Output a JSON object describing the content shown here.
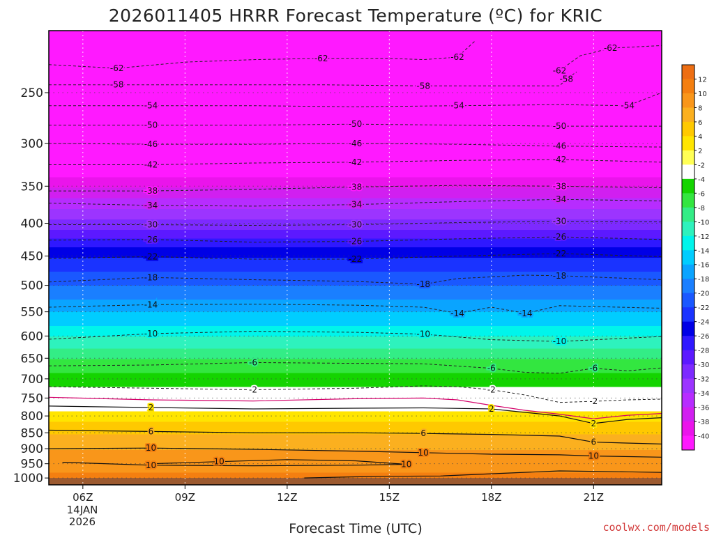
{
  "chart_data": {
    "type": "heatmap",
    "title": "2026011405 HRRR Forecast Temperature (ºC) for KRIC",
    "xlabel": "Forecast Time (UTC)",
    "ylabel": "",
    "x_ticks": [
      "06Z",
      "09Z",
      "12Z",
      "15Z",
      "18Z",
      "21Z"
    ],
    "x_hours": [
      6,
      9,
      12,
      15,
      18,
      21
    ],
    "x_range": [
      5,
      23
    ],
    "x_date_line1": "14JAN",
    "x_date_line2": "2026",
    "y_ticks": [
      250,
      300,
      350,
      400,
      450,
      500,
      550,
      600,
      650,
      700,
      750,
      800,
      850,
      900,
      950,
      1000
    ],
    "ylim": [
      1025,
      200
    ],
    "colorbar": {
      "labels": [
        12,
        10,
        8,
        6,
        4,
        2,
        -2,
        -4,
        -6,
        -8,
        -10,
        -12,
        -14,
        -16,
        -18,
        -20,
        -22,
        -24,
        -26,
        -28,
        -30,
        -32,
        -34,
        -36,
        -38,
        -40
      ],
      "colors": [
        "#ed6e13",
        "#f47f10",
        "#f9961a",
        "#fbb01f",
        "#ffc900",
        "#ffe500",
        "#ffff55",
        "#ffffff",
        "#14d400",
        "#33e640",
        "#33ed86",
        "#2ef2bd",
        "#00f5eb",
        "#00cdff",
        "#0aa4ff",
        "#1a7fff",
        "#1a58ff",
        "#1a33ff",
        "#0000e6",
        "#2f18ff",
        "#5c19ff",
        "#7d2aff",
        "#9c34ff",
        "#b72cff",
        "#d11ff0",
        "#ea14eb",
        "#ff19ff"
      ]
    },
    "temperature_profile": [
      {
        "p": 1000,
        "t": 11
      },
      {
        "p": 975,
        "t": 10
      },
      {
        "p": 950,
        "t": 9
      },
      {
        "p": 900,
        "t": 8
      },
      {
        "p": 850,
        "t": 6
      },
      {
        "p": 800,
        "t": 3
      },
      {
        "p": 750,
        "t": 0
      },
      {
        "p": 700,
        "t": -3
      },
      {
        "p": 650,
        "t": -6
      },
      {
        "p": 600,
        "t": -10
      },
      {
        "p": 550,
        "t": -14
      },
      {
        "p": 500,
        "t": -18
      },
      {
        "p": 450,
        "t": -22
      },
      {
        "p": 400,
        "t": -29
      },
      {
        "p": 350,
        "t": -36
      },
      {
        "p": 300,
        "t": -45
      },
      {
        "p": 250,
        "t": -56
      },
      {
        "p": 200,
        "t": -63
      }
    ],
    "contours": [
      {
        "label": "-62",
        "color": "#222",
        "dash": true,
        "points": [
          [
            5,
            226
          ],
          [
            7,
            229
          ],
          [
            9,
            224
          ],
          [
            11,
            222
          ],
          [
            13,
            221
          ],
          [
            15,
            221
          ],
          [
            16,
            222
          ],
          [
            17,
            220
          ],
          [
            17.5,
            208
          ]
        ]
      },
      {
        "label": "-62",
        "color": "#222",
        "dash": true,
        "points": [
          [
            20,
            231
          ],
          [
            20.6,
            219
          ],
          [
            21.5,
            213
          ],
          [
            23,
            211
          ]
        ]
      },
      {
        "label": "-58",
        "color": "#222",
        "dash": true,
        "points": [
          [
            5,
            243
          ],
          [
            7,
            243
          ],
          [
            10,
            243
          ],
          [
            13,
            243
          ],
          [
            16,
            244
          ],
          [
            19,
            244
          ],
          [
            20,
            244
          ],
          [
            20.2,
            238
          ],
          [
            20.5,
            232
          ]
        ]
      },
      {
        "label": "-54",
        "color": "#222",
        "dash": true,
        "points": [
          [
            5,
            262
          ],
          [
            8,
            262
          ],
          [
            11,
            262
          ],
          [
            14,
            263
          ],
          [
            17,
            262
          ],
          [
            20,
            261
          ],
          [
            22,
            262
          ],
          [
            23,
            250
          ]
        ]
      },
      {
        "label": "-50",
        "color": "#222",
        "dash": true,
        "points": [
          [
            5,
            281
          ],
          [
            8,
            281
          ],
          [
            11,
            281
          ],
          [
            14,
            280
          ],
          [
            17,
            281
          ],
          [
            20,
            282
          ],
          [
            23,
            282
          ]
        ]
      },
      {
        "label": "-46",
        "color": "#222",
        "dash": true,
        "points": [
          [
            5,
            300
          ],
          [
            8,
            301
          ],
          [
            11,
            301
          ],
          [
            14,
            300
          ],
          [
            17,
            301
          ],
          [
            20,
            303
          ],
          [
            23,
            304
          ]
        ]
      },
      {
        "label": "-42",
        "color": "#222",
        "dash": true,
        "points": [
          [
            5,
            324
          ],
          [
            8,
            324
          ],
          [
            11,
            322
          ],
          [
            14,
            321
          ],
          [
            17,
            319
          ],
          [
            20,
            318
          ],
          [
            23,
            321
          ]
        ]
      },
      {
        "label": "-38",
        "color": "#222",
        "dash": true,
        "points": [
          [
            5,
            356
          ],
          [
            8,
            356
          ],
          [
            11,
            354
          ],
          [
            14,
            351
          ],
          [
            17,
            349
          ],
          [
            20,
            350
          ],
          [
            23,
            352
          ]
        ]
      },
      {
        "label": "-34",
        "color": "#222",
        "dash": true,
        "points": [
          [
            5,
            372
          ],
          [
            8,
            375
          ],
          [
            11,
            376
          ],
          [
            14,
            374
          ],
          [
            17,
            370
          ],
          [
            20,
            367
          ],
          [
            23,
            369
          ]
        ]
      },
      {
        "label": "-30",
        "color": "#222",
        "dash": true,
        "points": [
          [
            5,
            402
          ],
          [
            8,
            402
          ],
          [
            11,
            403
          ],
          [
            14,
            402
          ],
          [
            17,
            399
          ],
          [
            20,
            397
          ],
          [
            23,
            398
          ]
        ]
      },
      {
        "label": "-26",
        "color": "#222",
        "dash": true,
        "points": [
          [
            5,
            425
          ],
          [
            8,
            424
          ],
          [
            11,
            428
          ],
          [
            14,
            427
          ],
          [
            17,
            423
          ],
          [
            20,
            420
          ],
          [
            23,
            424
          ]
        ]
      },
      {
        "label": "-22",
        "color": "#222",
        "dash": true,
        "points": [
          [
            5,
            454
          ],
          [
            8,
            451
          ],
          [
            11,
            455
          ],
          [
            14,
            455
          ],
          [
            17,
            450
          ],
          [
            20,
            446
          ],
          [
            23,
            451
          ]
        ]
      },
      {
        "label": "-18",
        "color": "#222",
        "dash": true,
        "points": [
          [
            5,
            494
          ],
          [
            8,
            486
          ],
          [
            11,
            490
          ],
          [
            14,
            493
          ],
          [
            16,
            498
          ],
          [
            17,
            488
          ],
          [
            19,
            482
          ],
          [
            20,
            483
          ],
          [
            23,
            490
          ]
        ]
      },
      {
        "label": "-14",
        "color": "#222",
        "dash": true,
        "points": [
          [
            5,
            541
          ],
          [
            8,
            536
          ],
          [
            11,
            535
          ],
          [
            14,
            537
          ],
          [
            16,
            541
          ],
          [
            17,
            553
          ],
          [
            18,
            541
          ],
          [
            19,
            553
          ],
          [
            20,
            538
          ],
          [
            23,
            543
          ]
        ]
      },
      {
        "label": "-10",
        "color": "#222",
        "dash": true,
        "points": [
          [
            5,
            607
          ],
          [
            8,
            595
          ],
          [
            11,
            590
          ],
          [
            14,
            592
          ],
          [
            16,
            596
          ],
          [
            18,
            608
          ],
          [
            20,
            612
          ],
          [
            23,
            601
          ]
        ]
      },
      {
        "label": "-6",
        "color": "#222",
        "dash": true,
        "points": [
          [
            5,
            668
          ],
          [
            8,
            666
          ],
          [
            11,
            660
          ],
          [
            14,
            662
          ],
          [
            16,
            663
          ],
          [
            18,
            674
          ],
          [
            19,
            684
          ],
          [
            20,
            686
          ],
          [
            21,
            674
          ],
          [
            22,
            680
          ],
          [
            23,
            673
          ]
        ]
      },
      {
        "label": "-2",
        "color": "#222",
        "dash": true,
        "points": [
          [
            5,
            720
          ],
          [
            8,
            724
          ],
          [
            11,
            728
          ],
          [
            14,
            724
          ],
          [
            16,
            718
          ],
          [
            17,
            720
          ],
          [
            18,
            728
          ],
          [
            19,
            742
          ],
          [
            20,
            762
          ],
          [
            21,
            759
          ],
          [
            22,
            755
          ],
          [
            23,
            753
          ]
        ]
      },
      {
        "label": "",
        "color": "#d4006a",
        "dash": false,
        "points": [
          [
            5,
            748
          ],
          [
            8,
            755
          ],
          [
            11,
            758
          ],
          [
            14,
            752
          ],
          [
            16,
            750
          ],
          [
            17,
            755
          ],
          [
            18,
            770
          ],
          [
            19,
            784
          ],
          [
            20,
            795
          ],
          [
            21,
            808
          ],
          [
            22,
            798
          ],
          [
            23,
            793
          ]
        ]
      },
      {
        "label": "2",
        "color": "#111",
        "dash": false,
        "points": [
          [
            5,
            772
          ],
          [
            8,
            776
          ],
          [
            11,
            780
          ],
          [
            14,
            778
          ],
          [
            16,
            777
          ],
          [
            18,
            780
          ],
          [
            20,
            800
          ],
          [
            21,
            822
          ],
          [
            22,
            810
          ],
          [
            23,
            805
          ]
        ]
      },
      {
        "label": "6",
        "color": "#111",
        "dash": false,
        "points": [
          [
            5,
            842
          ],
          [
            8,
            846
          ],
          [
            11,
            850
          ],
          [
            14,
            850
          ],
          [
            16,
            852
          ],
          [
            18,
            855
          ],
          [
            20,
            860
          ],
          [
            21,
            879
          ],
          [
            23,
            885
          ]
        ]
      },
      {
        "label": "10",
        "color": "#111",
        "dash": false,
        "points": [
          [
            5,
            900
          ],
          [
            8,
            898
          ],
          [
            11,
            902
          ],
          [
            14,
            908
          ],
          [
            16,
            913
          ],
          [
            18,
            918
          ],
          [
            20,
            920
          ],
          [
            21,
            924
          ],
          [
            23,
            928
          ]
        ]
      },
      {
        "label": "10",
        "color": "#111",
        "dash": false,
        "points": [
          [
            5.4,
            945
          ],
          [
            8,
            955
          ],
          [
            11,
            957
          ],
          [
            14,
            955
          ],
          [
            15.5,
            952
          ],
          [
            14,
            940
          ],
          [
            12,
            936
          ],
          [
            10,
            943
          ],
          [
            8,
            950
          ]
        ]
      },
      {
        "label": "",
        "color": "#111",
        "dash": false,
        "points": [
          [
            12.5,
            1000
          ],
          [
            14,
            996
          ],
          [
            15,
            994
          ],
          [
            16.5,
            993
          ],
          [
            18,
            985
          ],
          [
            20,
            975
          ],
          [
            22,
            978
          ],
          [
            23,
            980
          ]
        ]
      }
    ]
  },
  "credit": "coolwx.com/models"
}
